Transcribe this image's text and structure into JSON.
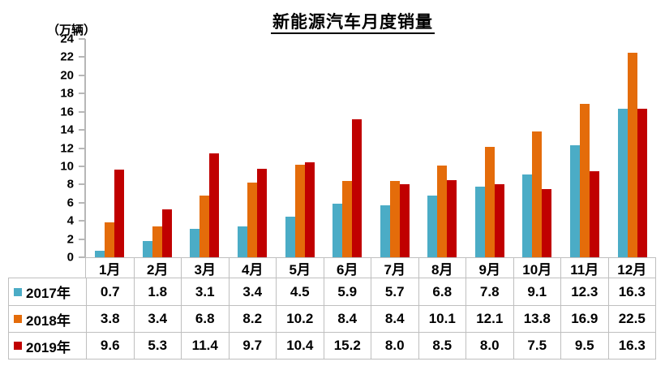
{
  "chart_data": {
    "type": "bar",
    "title": "新能源汽车月度销量",
    "ylabel": "（万辆）",
    "xlabel": "",
    "categories": [
      "1月",
      "2月",
      "3月",
      "4月",
      "5月",
      "6月",
      "7月",
      "8月",
      "9月",
      "10月",
      "11月",
      "12月"
    ],
    "series": [
      {
        "name": "2017年",
        "color": "#4BACC6",
        "values": [
          0.7,
          1.8,
          3.1,
          3.4,
          4.5,
          5.9,
          5.7,
          6.8,
          7.8,
          9.1,
          12.3,
          16.3
        ]
      },
      {
        "name": "2018年",
        "color": "#E46C0A",
        "values": [
          3.8,
          3.4,
          6.8,
          8.2,
          10.2,
          8.4,
          8.4,
          10.1,
          12.1,
          13.8,
          16.9,
          22.5
        ]
      },
      {
        "name": "2019年",
        "color": "#C00000",
        "values": [
          9.6,
          5.3,
          11.4,
          9.7,
          10.4,
          15.2,
          8.0,
          8.5,
          8.0,
          7.5,
          9.5,
          16.3
        ]
      }
    ],
    "ylim": [
      0,
      24
    ],
    "y_tick_step": 2,
    "grid": false,
    "legend_position": "attached data table below chart, legend keys in first column",
    "axis_color": "#B7B7B7",
    "table_border_color": "#BFBFBF"
  }
}
